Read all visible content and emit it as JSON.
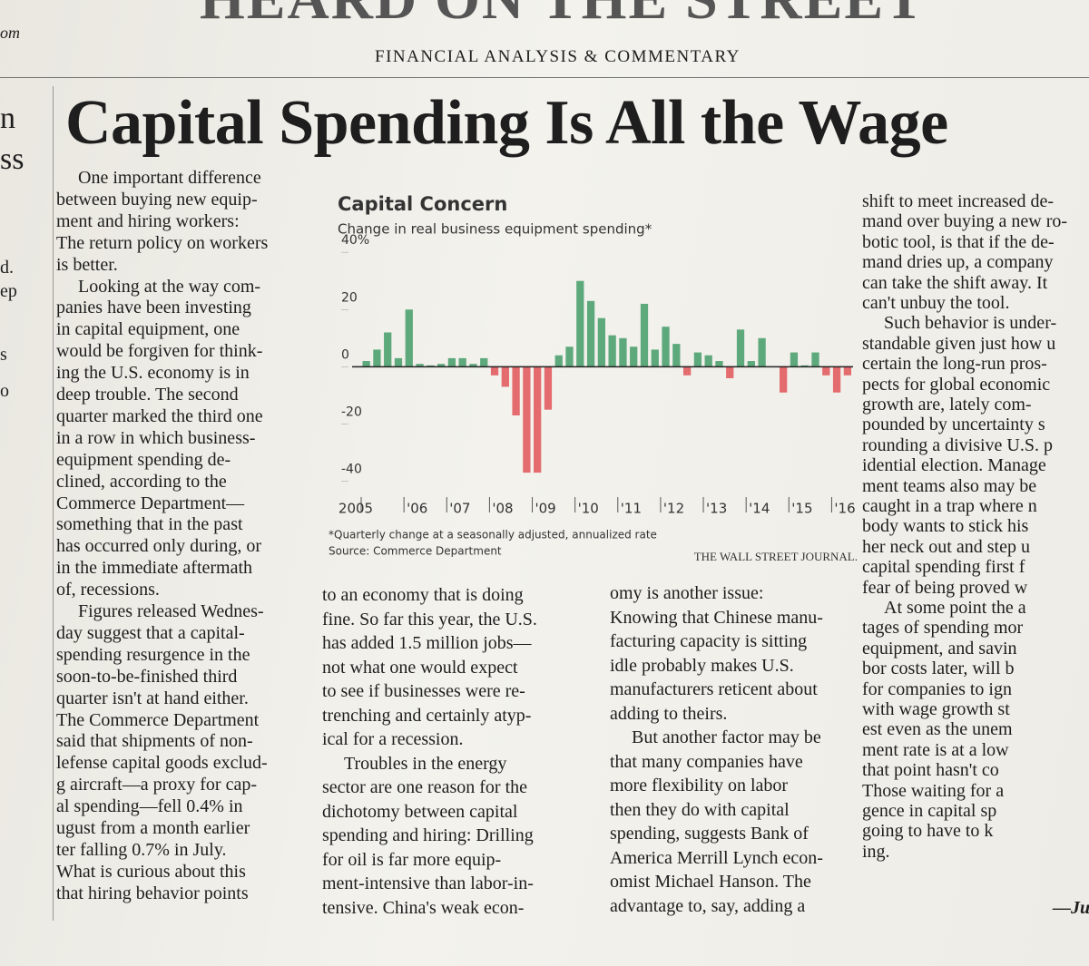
{
  "header": {
    "masthead": "HEARD ON THE STREET",
    "edge_fragment": "om",
    "section": "FINANCIAL ANALYSIS & COMMENTARY"
  },
  "headline": "Capital Spending Is All the Wage",
  "left_fragments": [
    "n",
    "ss",
    "d.",
    "ep",
    "s",
    "o"
  ],
  "columns": [
    [
      "One important difference",
      "between buying new equip-",
      "ment and hiring workers:",
      "The return policy on workers",
      "is better.",
      "Looking at the way com-",
      "panies have been investing",
      "in capital equipment, one",
      "would be forgiven for think-",
      "ing the U.S. economy is in",
      "deep trouble. The second",
      "quarter marked the third one",
      "in a row in which business-",
      "equipment spending de-",
      "clined, according to the",
      "Commerce Department—",
      "something that in the past",
      "has occurred only during, or",
      "in the immediate aftermath",
      "of, recessions.",
      "Figures released Wednes-",
      "day suggest that a capital-",
      "spending resurgence in the",
      "soon-to-be-finished third",
      "quarter isn't at hand either.",
      "The Commerce Department",
      "said that shipments of non-",
      "lefense capital goods exclud-",
      "g aircraft—a proxy for cap-",
      "al spending—fell 0.4% in",
      "ugust from a month earlier",
      "ter falling 0.7% in July.",
      "What is curious about this",
      "that hiring behavior points"
    ],
    [
      "to an economy that is doing",
      "fine. So far this year, the U.S.",
      "has added 1.5 million jobs—",
      "not what one would expect",
      "to see if businesses were re-",
      "trenching and certainly atyp-",
      "ical for a recession.",
      "Troubles in the energy",
      "sector are one reason for the",
      "dichotomy between capital",
      "spending and hiring: Drilling",
      "for oil is far more equip-",
      "ment-intensive than labor-in-",
      "tensive. China's weak econ-"
    ],
    [
      "omy is another issue:",
      "Knowing that Chinese manu-",
      "facturing capacity is sitting",
      "idle probably makes U.S.",
      "manufacturers reticent about",
      "adding to theirs.",
      "But another factor may be",
      "that many companies have",
      "more flexibility on labor",
      "then they do with capital",
      "spending, suggests Bank of",
      "America Merrill Lynch econ-",
      "omist Michael Hanson. The",
      "advantage to, say, adding a"
    ],
    [
      "shift to meet increased de-",
      "mand over buying a new ro-",
      "botic tool, is that if the de-",
      "mand dries up, a company",
      "can take the shift away. It",
      "can't unbuy the tool.",
      "Such behavior is under-",
      "standable given just how u",
      "certain the long-run pros-",
      "pects for global economic",
      "growth are, lately com-",
      "pounded by uncertainty s",
      "rounding a divisive U.S. p",
      "idential election. Manage",
      "ment teams also may be",
      "caught in a trap where n",
      "body wants to stick his",
      "her neck out and step u",
      "capital spending first f",
      "fear of being proved w",
      "At some point the a",
      "tages of spending mor",
      "equipment, and savin",
      "bor costs later, will b",
      "for companies to ign",
      "with wage growth st",
      "est even as the unem",
      "ment rate is at a low",
      "that point hasn't co",
      "Those waiting for a",
      "gence in capital sp",
      "going to have to k",
      "ing."
    ]
  ],
  "signature": "—Ju",
  "chart_data": {
    "type": "bar",
    "title": "Capital Concern",
    "subtitle": "Change in real business equipment spending*",
    "categories": [
      "2005",
      null,
      null,
      null,
      "'06",
      null,
      null,
      null,
      "'07",
      null,
      null,
      null,
      "'08",
      null,
      null,
      null,
      "'09",
      null,
      null,
      null,
      "'10",
      null,
      null,
      null,
      "'11",
      null,
      null,
      null,
      "'12",
      null,
      null,
      null,
      "'13",
      null,
      null,
      null,
      "'14",
      null,
      null,
      null,
      "'15",
      null,
      null,
      null,
      "'16",
      null
    ],
    "values": [
      2,
      6,
      12,
      3,
      20,
      1,
      0.5,
      1,
      3,
      3,
      1,
      3,
      -3,
      -7,
      -17,
      -37,
      -37,
      -15,
      4,
      7,
      30,
      23,
      17,
      11,
      10,
      7,
      22,
      6,
      14,
      8,
      -3,
      5,
      4,
      2,
      -4,
      13,
      2,
      10,
      0,
      -9,
      5,
      0.5,
      5,
      -3,
      -9,
      -3
    ],
    "positive_color": "#5ea97c",
    "negative_color": "#e46b6e",
    "ylim": [
      -43,
      41
    ],
    "yticks": [
      {
        "value": 40,
        "label": "40%"
      },
      20,
      0,
      -20,
      -40
    ],
    "footnote": "*Quarterly change at a seasonally adjusted, annualized rate",
    "source": "Source: Commerce Department",
    "credit": "THE WALL STREET JOURNAL."
  }
}
